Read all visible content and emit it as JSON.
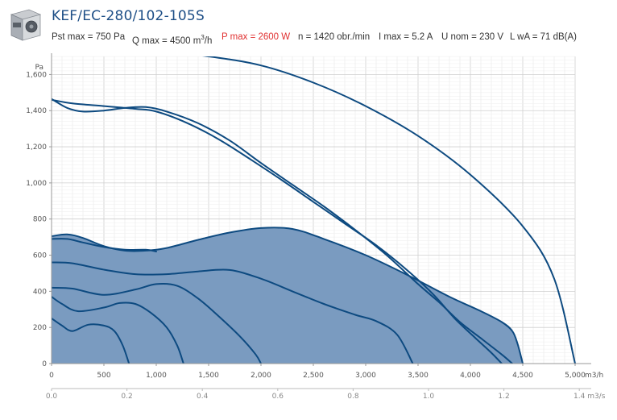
{
  "header": {
    "title": "KEF/EC-280/102-105S",
    "specs": {
      "pst_max": "Pst max = 750 Pa",
      "q_max_prefix": "Q max = 4500 m",
      "q_max_sup": "3",
      "q_max_suffix": "/h",
      "p_max": "P max = 2600 W",
      "n": "n = 1420 obr./min",
      "i_max": "I max = 5.2 A",
      "u_nom": "U nom = 230 V",
      "lwa": "L wA = 71 dB(A)"
    },
    "colors": {
      "title": "#1d4e86",
      "power": "#e03030"
    }
  },
  "chart_data": {
    "type": "line",
    "ylabel": "Pa",
    "xlabel": "m3/h",
    "x2label": "m3/s",
    "xlim": [
      0,
      5000
    ],
    "ylim": [
      0,
      1700
    ],
    "xticks": [
      0,
      500,
      1000,
      1500,
      2000,
      2500,
      3000,
      3500,
      4000,
      4500,
      5000
    ],
    "xtick_labels": [
      "0",
      "500",
      "1,000",
      "1,500",
      "2,000",
      "2,500",
      "3,000",
      "3,500",
      "4,000",
      "4,500",
      "5,000"
    ],
    "x2ticks": [
      0,
      0.2,
      0.4,
      0.6,
      0.8,
      1.0,
      1.2,
      1.4
    ],
    "x2tick_labels": [
      "0.0",
      "0.2",
      "0.4",
      "0.6",
      "0.8",
      "1.0",
      "1.2",
      "1.4"
    ],
    "yticks": [
      0,
      200,
      400,
      600,
      800,
      1000,
      1200,
      1400,
      1600
    ],
    "ytick_labels": [
      "0",
      "200",
      "400",
      "600",
      "800",
      "1,000",
      "1,200",
      "1,400",
      "1,600"
    ],
    "grid": true,
    "colors": {
      "line": "#0d4a80",
      "fill": "#7a9bc0"
    },
    "operating_area": [
      [
        0,
        705
      ],
      [
        150,
        715
      ],
      [
        300,
        695
      ],
      [
        500,
        650
      ],
      [
        700,
        625
      ],
      [
        900,
        625
      ],
      [
        1100,
        640
      ],
      [
        1400,
        685
      ],
      [
        1700,
        725
      ],
      [
        2000,
        750
      ],
      [
        2300,
        745
      ],
      [
        2600,
        690
      ],
      [
        3000,
        600
      ],
      [
        3400,
        490
      ],
      [
        3800,
        370
      ],
      [
        4100,
        290
      ],
      [
        4300,
        230
      ],
      [
        4400,
        180
      ],
      [
        4450,
        110
      ],
      [
        4500,
        0
      ],
      [
        0,
        0
      ]
    ],
    "series": [
      {
        "points": [
          [
            1050,
            1725
          ],
          [
            1500,
            1700
          ],
          [
            2000,
            1650
          ],
          [
            2500,
            1555
          ],
          [
            3000,
            1425
          ],
          [
            3500,
            1260
          ],
          [
            4000,
            1045
          ],
          [
            4500,
            760
          ],
          [
            4800,
            470
          ],
          [
            5000,
            0
          ]
        ]
      },
      {
        "points": [
          [
            0,
            1465
          ],
          [
            150,
            1415
          ],
          [
            300,
            1395
          ],
          [
            500,
            1400
          ],
          [
            700,
            1415
          ],
          [
            900,
            1420
          ],
          [
            1100,
            1395
          ],
          [
            1400,
            1330
          ],
          [
            1700,
            1235
          ],
          [
            2000,
            1110
          ],
          [
            2300,
            990
          ],
          [
            2600,
            870
          ],
          [
            2900,
            740
          ],
          [
            3200,
            600
          ],
          [
            3500,
            440
          ],
          [
            3700,
            340
          ],
          [
            3900,
            230
          ],
          [
            4100,
            140
          ],
          [
            4300,
            50
          ],
          [
            4400,
            0
          ]
        ]
      },
      {
        "points": [
          [
            0,
            1460
          ],
          [
            200,
            1440
          ],
          [
            500,
            1425
          ],
          [
            800,
            1410
          ],
          [
            1000,
            1395
          ],
          [
            1300,
            1330
          ],
          [
            1600,
            1240
          ],
          [
            1900,
            1130
          ],
          [
            2200,
            1015
          ],
          [
            2500,
            895
          ],
          [
            2800,
            775
          ],
          [
            3100,
            655
          ],
          [
            3400,
            515
          ],
          [
            3650,
            380
          ],
          [
            3850,
            250
          ],
          [
            4050,
            140
          ],
          [
            4200,
            60
          ],
          [
            4300,
            0
          ]
        ]
      },
      {
        "points": [
          [
            0,
            705
          ],
          [
            150,
            715
          ],
          [
            300,
            695
          ],
          [
            500,
            650
          ],
          [
            700,
            625
          ],
          [
            900,
            625
          ],
          [
            1100,
            640
          ],
          [
            1400,
            685
          ],
          [
            1700,
            725
          ],
          [
            2000,
            750
          ],
          [
            2300,
            745
          ],
          [
            2600,
            690
          ],
          [
            3000,
            600
          ],
          [
            3400,
            490
          ],
          [
            3800,
            370
          ],
          [
            4100,
            290
          ],
          [
            4300,
            230
          ],
          [
            4400,
            180
          ],
          [
            4450,
            110
          ],
          [
            4500,
            0
          ]
        ]
      },
      {
        "points": [
          [
            0,
            690
          ],
          [
            150,
            690
          ],
          [
            300,
            670
          ],
          [
            500,
            645
          ],
          [
            700,
            630
          ],
          [
            900,
            630
          ],
          [
            1000,
            620
          ]
        ]
      },
      {
        "points": [
          [
            0,
            560
          ],
          [
            200,
            555
          ],
          [
            500,
            520
          ],
          [
            800,
            495
          ],
          [
            1100,
            495
          ],
          [
            1400,
            510
          ],
          [
            1700,
            518
          ],
          [
            2000,
            470
          ],
          [
            2300,
            400
          ],
          [
            2600,
            330
          ],
          [
            2900,
            270
          ],
          [
            3100,
            235
          ],
          [
            3300,
            160
          ],
          [
            3450,
            0
          ]
        ]
      },
      {
        "points": [
          [
            0,
            420
          ],
          [
            200,
            415
          ],
          [
            500,
            380
          ],
          [
            800,
            410
          ],
          [
            1000,
            440
          ],
          [
            1200,
            430
          ],
          [
            1400,
            360
          ],
          [
            1600,
            260
          ],
          [
            1800,
            150
          ],
          [
            1950,
            50
          ],
          [
            2000,
            0
          ]
        ]
      },
      {
        "points": [
          [
            0,
            370
          ],
          [
            100,
            330
          ],
          [
            250,
            290
          ],
          [
            500,
            310
          ],
          [
            650,
            335
          ],
          [
            800,
            330
          ],
          [
            950,
            280
          ],
          [
            1100,
            200
          ],
          [
            1200,
            100
          ],
          [
            1260,
            0
          ]
        ]
      },
      {
        "points": [
          [
            0,
            250
          ],
          [
            100,
            210
          ],
          [
            200,
            180
          ],
          [
            350,
            215
          ],
          [
            500,
            210
          ],
          [
            600,
            180
          ],
          [
            680,
            100
          ],
          [
            740,
            0
          ]
        ]
      }
    ]
  }
}
